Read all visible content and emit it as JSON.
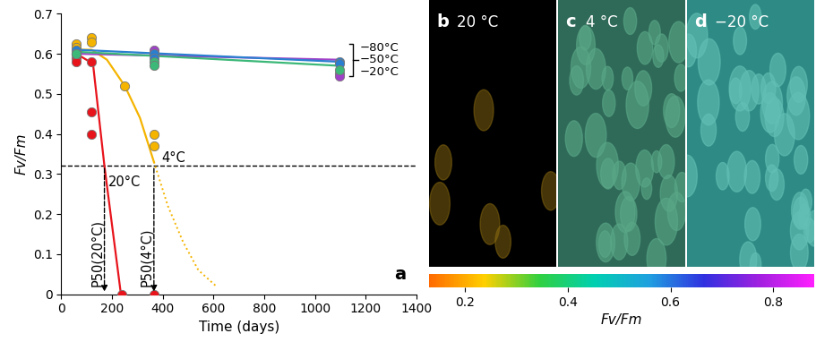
{
  "chart_data": {
    "type": "scatter",
    "label": "a",
    "x_label": "Time (days)",
    "y_label": "Fv/Fm",
    "xlim": [
      0,
      1400
    ],
    "xticks": [
      0,
      200,
      400,
      600,
      800,
      1000,
      1200,
      1400
    ],
    "ylim": [
      0,
      0.7
    ],
    "yticks": [
      0,
      0.1,
      0.2,
      0.3,
      0.4,
      0.5,
      0.6,
      0.7
    ],
    "grid": false,
    "threshold": {
      "value": 0.32,
      "line_style": "dashed"
    },
    "p50": [
      {
        "label": "P50(20°C)",
        "x": 170
      },
      {
        "label": "P50(4°C)",
        "x": 365
      }
    ],
    "series": [
      {
        "name": "20°C",
        "color": "#e8141c",
        "marker": "o",
        "x": [
          60,
          60,
          120,
          120,
          120,
          240,
          365
        ],
        "values": [
          0.59,
          0.58,
          0.58,
          0.455,
          0.4,
          0,
          0
        ],
        "fit": {
          "x": [
            60,
            125,
            170,
            235
          ],
          "values": [
            0.6,
            0.575,
            0.32,
            0
          ]
        }
      },
      {
        "name": "4°C",
        "color": "#f5b400",
        "marker": "o",
        "x": [
          60,
          60,
          120,
          120,
          250,
          365,
          365
        ],
        "values": [
          0.625,
          0.615,
          0.64,
          0.63,
          0.52,
          0.4,
          0.37
        ],
        "fit": {
          "x": [
            60,
            120,
            180,
            250,
            310,
            365
          ],
          "values": [
            0.61,
            0.61,
            0.585,
            0.52,
            0.44,
            0.33
          ]
        },
        "extrapolation": {
          "x": [
            365,
            420,
            480,
            540,
            610
          ],
          "values": [
            0.33,
            0.22,
            0.13,
            0.06,
            0.02
          ],
          "line_style": "dotted"
        }
      },
      {
        "name": "−80°C",
        "color": "#a040c8",
        "marker": "o",
        "x": [
          60,
          365,
          365,
          1095,
          1095
        ],
        "values": [
          0.6,
          0.61,
          0.6,
          0.55,
          0.545
        ],
        "fit": {
          "x": [
            60,
            1095
          ],
          "values": [
            0.6,
            0.585
          ]
        }
      },
      {
        "name": "−50°C",
        "color": "#2a7fd0",
        "marker": "o",
        "x": [
          60,
          60,
          365,
          365,
          1095,
          1095
        ],
        "values": [
          0.61,
          0.6,
          0.6,
          0.59,
          0.58,
          0.575
        ],
        "fit": {
          "x": [
            60,
            1095
          ],
          "values": [
            0.61,
            0.58
          ]
        }
      },
      {
        "name": "−20°C",
        "color": "#3cb878",
        "marker": "o",
        "x": [
          60,
          365,
          365,
          1095
        ],
        "values": [
          0.6,
          0.58,
          0.57,
          0.56
        ],
        "fit": {
          "x": [
            60,
            1095
          ],
          "values": [
            0.605,
            0.57
          ]
        }
      }
    ]
  },
  "images": [
    {
      "label": "b",
      "title": "20 °C"
    },
    {
      "label": "c",
      "title": "4 °C"
    },
    {
      "label": "d",
      "title": "−20 °C"
    }
  ],
  "colorbar": {
    "label": "Fv/Fm",
    "range": [
      0.13,
      0.88
    ],
    "ticks": [
      0.2,
      0.4,
      0.6,
      0.8
    ]
  }
}
